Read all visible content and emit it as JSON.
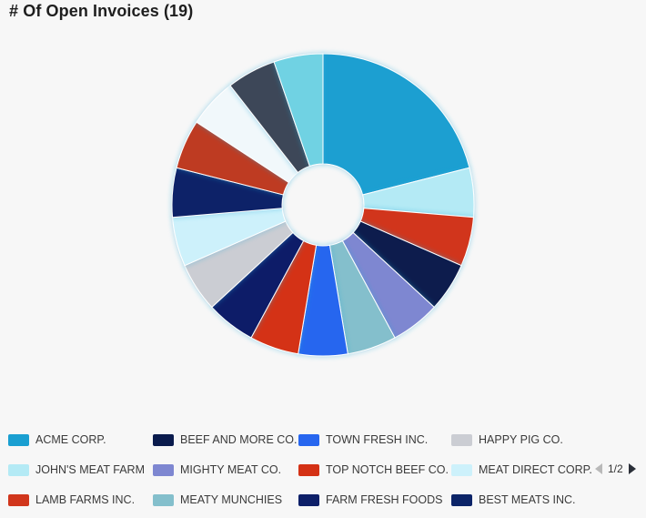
{
  "title": "# Of Open Invoices (19)",
  "pager": {
    "label": "1/2",
    "prev_icon": "triangle-left-icon",
    "next_icon": "triangle-right-icon"
  },
  "chart_data": {
    "type": "pie",
    "variant": "donut",
    "total": 19,
    "slices": [
      {
        "label": "ACME CORP.",
        "value": 4,
        "color": "#1a9fd1"
      },
      {
        "label": "JOHN'S MEAT FARM",
        "value": 1,
        "color": "#b4eaf5"
      },
      {
        "label": "LAMB FARMS INC.",
        "value": 1,
        "color": "#d1361c"
      },
      {
        "label": "BEEF AND MORE CO.",
        "value": 1,
        "color": "#0a1b4d"
      },
      {
        "label": "MIGHTY MEAT CO.",
        "value": 1,
        "color": "#7e87d1"
      },
      {
        "label": "MEATY MUNCHIES",
        "value": 1,
        "color": "#84bfcc"
      },
      {
        "label": "TOWN FRESH INC.",
        "value": 1,
        "color": "#2766ef"
      },
      {
        "label": "TOP NOTCH BEEF CO.",
        "value": 1,
        "color": "#d43115"
      },
      {
        "label": "FARM FRESH FOODS",
        "value": 1,
        "color": "#0d1f68"
      },
      {
        "label": "HAPPY PIG CO.",
        "value": 1,
        "color": "#cbcdd3"
      },
      {
        "label": "MEAT DIRECT CORP.",
        "value": 1,
        "color": "#cdf1fb"
      },
      {
        "label": "BEST MEATS INC.",
        "value": 1,
        "color": "#0c2468"
      },
      {
        "label": "",
        "value": 1,
        "color": "#be3a23"
      },
      {
        "label": "",
        "value": 1,
        "color": "#f1f8fb"
      },
      {
        "label": "",
        "value": 1,
        "color": "#3e4758"
      },
      {
        "label": "",
        "value": 1,
        "color": "#6fd2e3"
      }
    ],
    "legend": {
      "placement": "bottom",
      "page": "1/2",
      "columns": [
        [
          "ACME CORP.",
          "JOHN'S MEAT FARM",
          "LAMB FARMS INC."
        ],
        [
          "BEEF AND MORE CO.",
          "MIGHTY MEAT CO.",
          "MEATY MUNCHIES"
        ],
        [
          "TOWN FRESH INC.",
          "TOP NOTCH BEEF CO.",
          "FARM FRESH FOODS"
        ],
        [
          "HAPPY PIG CO.",
          "MEAT DIRECT CORP.",
          "BEST MEATS INC."
        ]
      ]
    }
  }
}
